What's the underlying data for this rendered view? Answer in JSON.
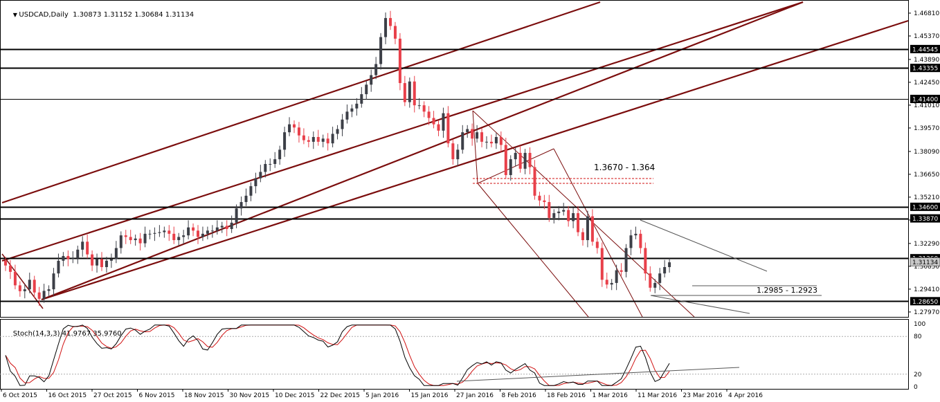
{
  "symbol_header": {
    "symbol": "USDCAD,Daily",
    "ohlc": "1.30873 1.31152 1.30684 1.31134"
  },
  "stoch_header": {
    "label": "Stoch(14,3,3)",
    "values": "41.9767 35.9760"
  },
  "annotations": {
    "zone_upper": "1.3670 - 1.364",
    "zone_lower": "1.2985 - 1.2923"
  },
  "colors": {
    "bull": "#3c3f47",
    "bear": "#e8404a",
    "channel": "#7b0d0d",
    "level": "#000000",
    "stoch_main": "#000000",
    "stoch_signal": "#d01010"
  },
  "chart_data": [
    {
      "type": "candlestick",
      "title": "USDCAD,Daily",
      "y_axis_ticks": [
        "1.46810",
        "1.45370",
        "1.43890",
        "1.42450",
        "1.41010",
        "1.39570",
        "1.38090",
        "1.36650",
        "1.35210",
        "1.33770",
        "1.32290",
        "1.30850",
        "1.29410",
        "1.27970"
      ],
      "ylim": [
        1.2766,
        1.4755
      ],
      "price_labels": [
        {
          "value": "1.44545",
          "y": 1.44545
        },
        {
          "value": "1.43355",
          "y": 1.43355
        },
        {
          "value": "1.41400",
          "y": 1.414
        },
        {
          "value": "1.34600",
          "y": 1.346
        },
        {
          "value": "1.33870",
          "y": 1.3387
        },
        {
          "value": "1.31360",
          "y": 1.3136
        },
        {
          "value": "1.28650",
          "y": 1.2865
        }
      ],
      "current_price": "1.31134",
      "x_axis_labels": [
        "6 Oct 2015",
        "16 Oct 2015",
        "27 Oct 2015",
        "6 Nov 2015",
        "18 Nov 2015",
        "30 Nov 2015",
        "10 Dec 2015",
        "22 Dec 2015",
        "5 Jan 2016",
        "15 Jan 2016",
        "27 Jan 2016",
        "8 Feb 2016",
        "18 Feb 2016",
        "1 Mar 2016",
        "11 Mar 2016",
        "23 Mar 2016",
        "4 Apr 2016"
      ],
      "closes": [
        1.309,
        1.305,
        1.2965,
        1.2928,
        1.294,
        1.3,
        1.292,
        1.288,
        1.293,
        1.294,
        1.304,
        1.312,
        1.315,
        1.313,
        1.3135,
        1.319,
        1.324,
        1.316,
        1.309,
        1.313,
        1.308,
        1.312,
        1.313,
        1.32,
        1.328,
        1.327,
        1.325,
        1.326,
        1.323,
        1.329,
        1.329,
        1.3295,
        1.33,
        1.331,
        1.329,
        1.325,
        1.327,
        1.328,
        1.333,
        1.331,
        1.327,
        1.329,
        1.331,
        1.331,
        1.333,
        1.334,
        1.332,
        1.336,
        1.345,
        1.349,
        1.353,
        1.359,
        1.364,
        1.368,
        1.373,
        1.373,
        1.376,
        1.382,
        1.393,
        1.398,
        1.396,
        1.391,
        1.388,
        1.387,
        1.39,
        1.387,
        1.389,
        1.386,
        1.392,
        1.395,
        1.401,
        1.406,
        1.408,
        1.411,
        1.417,
        1.423,
        1.429,
        1.436,
        1.453,
        1.465,
        1.46,
        1.452,
        1.424,
        1.412,
        1.425,
        1.41,
        1.41,
        1.406,
        1.402,
        1.398,
        1.394,
        1.405,
        1.386,
        1.376,
        1.382,
        1.393,
        1.395,
        1.389,
        1.393,
        1.387,
        1.387,
        1.386,
        1.39,
        1.385,
        1.366,
        1.376,
        1.38,
        1.37,
        1.38,
        1.371,
        1.353,
        1.35,
        1.349,
        1.339,
        1.342,
        1.343,
        1.344,
        1.337,
        1.342,
        1.33,
        1.325,
        1.34,
        1.324,
        1.32,
        1.3,
        1.297,
        1.298,
        1.306,
        1.305,
        1.32,
        1.328,
        1.329,
        1.32,
        1.304,
        1.295,
        1.298,
        1.304,
        1.308,
        1.311
      ],
      "stochastic": {
        "label": "Stoch(14,3,3)",
        "main_last": 41.9767,
        "signal_last": 35.976,
        "levels": [
          80,
          20
        ],
        "scale_labels": [
          "100",
          "80",
          "20",
          "0"
        ],
        "ylim": [
          0,
          100
        ]
      }
    }
  ]
}
